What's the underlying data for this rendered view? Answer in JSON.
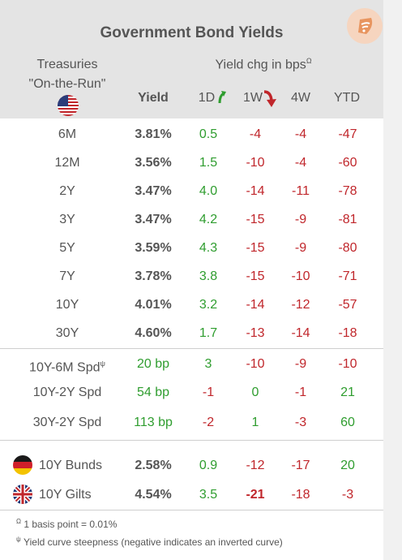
{
  "header": {
    "title": "Government Bond Yields",
    "treasuries_line1": "Treasuries",
    "treasuries_line2": "\"On-the-Run\"",
    "yield_chg_label": "Yield chg in bps",
    "yield_chg_marker": "Ω",
    "col_yield": "Yield",
    "col_1d": "1D",
    "col_1w": "1W",
    "col_4w": "4W",
    "col_ytd": "YTD"
  },
  "treasuries": [
    {
      "label": "6M",
      "yield": "3.81%",
      "d1": "0.5",
      "w1": "-4",
      "w4": "-4",
      "ytd": "-47"
    },
    {
      "label": "12M",
      "yield": "3.56%",
      "d1": "1.5",
      "w1": "-10",
      "w4": "-4",
      "ytd": "-60"
    },
    {
      "label": "2Y",
      "yield": "3.47%",
      "d1": "4.0",
      "w1": "-14",
      "w4": "-11",
      "ytd": "-78"
    },
    {
      "label": "3Y",
      "yield": "3.47%",
      "d1": "4.2",
      "w1": "-15",
      "w4": "-9",
      "ytd": "-81"
    },
    {
      "label": "5Y",
      "yield": "3.59%",
      "d1": "4.3",
      "w1": "-15",
      "w4": "-9",
      "ytd": "-80"
    },
    {
      "label": "7Y",
      "yield": "3.78%",
      "d1": "3.8",
      "w1": "-15",
      "w4": "-10",
      "ytd": "-71"
    },
    {
      "label": "10Y",
      "yield": "4.01%",
      "d1": "3.2",
      "w1": "-14",
      "w4": "-12",
      "ytd": "-57"
    },
    {
      "label": "30Y",
      "yield": "4.60%",
      "d1": "1.7",
      "w1": "-13",
      "w4": "-14",
      "ytd": "-18"
    }
  ],
  "spreads": [
    {
      "label": "10Y-6M Spd",
      "marker": "ψ",
      "yield": "20 bp",
      "d1": "3",
      "w1": "-10",
      "w4": "-9",
      "ytd": "-10"
    },
    {
      "label": "10Y-2Y Spd",
      "marker": "",
      "yield": "54 bp",
      "d1": "-1",
      "w1": "0",
      "w4": "-1",
      "ytd": "21"
    },
    {
      "label": "30Y-2Y Spd",
      "marker": "",
      "yield": "113 bp",
      "d1": "-2",
      "w1": "1",
      "w4": "-3",
      "ytd": "60"
    }
  ],
  "international": [
    {
      "label": "10Y Bunds",
      "flag": "germany-flag-icon",
      "yield": "2.58%",
      "d1": "0.9",
      "w1": "-12",
      "w4": "-17",
      "ytd": "20"
    },
    {
      "label": "10Y Gilts",
      "flag": "uk-flag-icon",
      "yield": "4.54%",
      "d1": "3.5",
      "w1": "-21",
      "w4": "-18",
      "ytd": "-3"
    }
  ],
  "footnotes": {
    "omega_marker": "Ω",
    "omega_text": "1 basis point = 0.01%",
    "psi_marker": "ψ",
    "psi_text": "Yield curve steepness (negative indicates an inverted curve)"
  },
  "colors": {
    "positive": "#2f9d2f",
    "negative": "#c0262b",
    "header_bg": "#e4e4e4",
    "accent": "#e8955f"
  }
}
